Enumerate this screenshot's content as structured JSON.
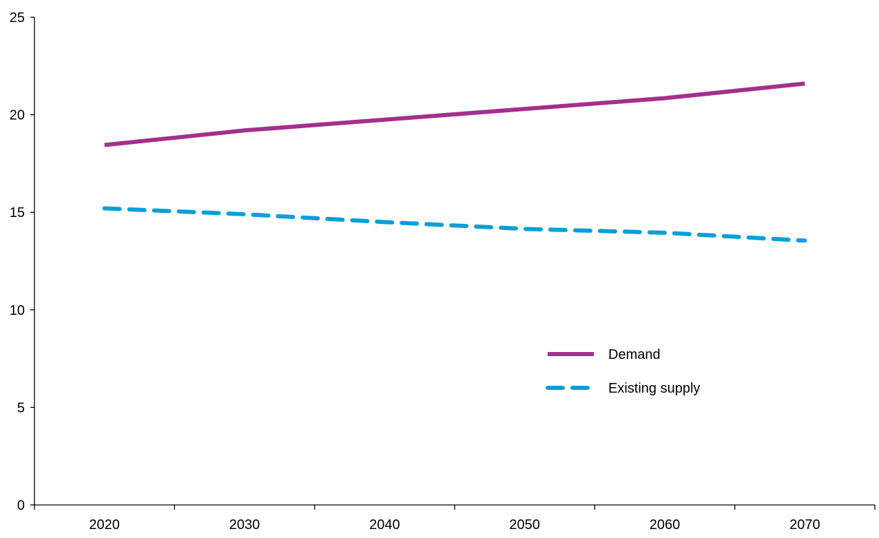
{
  "chart_data": {
    "type": "line",
    "title": "",
    "xlabel": "",
    "ylabel": "",
    "x": [
      2020,
      2030,
      2040,
      2050,
      2060,
      2070
    ],
    "x_tick_labels": [
      "2020",
      "2030",
      "2040",
      "2050",
      "2060",
      "2070"
    ],
    "xlim": [
      2015,
      2075
    ],
    "ylim": [
      0,
      25
    ],
    "y_ticks": [
      0,
      5,
      10,
      15,
      20,
      25
    ],
    "y_tick_labels": [
      "0",
      "5",
      "10",
      "15",
      "20",
      "25"
    ],
    "grid": false,
    "legend_position": "center-right",
    "series": [
      {
        "name": "Demand",
        "values": [
          18.45,
          19.2,
          19.75,
          20.3,
          20.85,
          21.6
        ],
        "color": "#a3308c",
        "style": "solid"
      },
      {
        "name": "Existing supply",
        "values": [
          15.2,
          14.9,
          14.5,
          14.15,
          13.95,
          13.55
        ],
        "color": "#0a9fd8",
        "style": "dashed"
      }
    ]
  }
}
